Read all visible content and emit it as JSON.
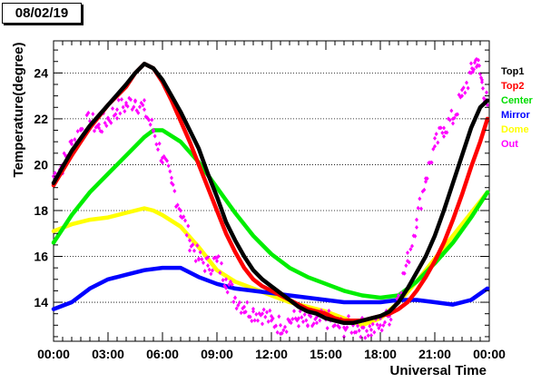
{
  "title": "08/02/19",
  "chart_data": {
    "type": "line",
    "title": "08/02/19",
    "xlabel": "Universal Time",
    "ylabel": "Temperature(degree)",
    "xlim": [
      0,
      24
    ],
    "ylim": [
      12.3,
      25.4
    ],
    "x_ticks": [
      "00:00",
      "03:00",
      "06:00",
      "09:00",
      "12:00",
      "15:00",
      "18:00",
      "21:00",
      "00:00"
    ],
    "y_ticks": [
      "14",
      "16",
      "18",
      "20",
      "22",
      "24"
    ],
    "grid": "horizontal dotted",
    "legend": "right",
    "series": [
      {
        "name": "Top1",
        "color": "#000000",
        "style": "line",
        "x": [
          0,
          1,
          2,
          3,
          4,
          4.5,
          5,
          5.5,
          6,
          6.5,
          7,
          7.5,
          8,
          8.5,
          9,
          9.5,
          10,
          10.5,
          11,
          11.5,
          12,
          12.5,
          13,
          13.5,
          14,
          14.5,
          15,
          15.5,
          16,
          16.5,
          17,
          17.5,
          18,
          18.5,
          19,
          19.5,
          20,
          20.5,
          21,
          21.5,
          22,
          22.5,
          23,
          23.5,
          23.9
        ],
        "y": [
          19.2,
          20.6,
          21.7,
          22.6,
          23.5,
          24.0,
          24.4,
          24.2,
          23.7,
          23.0,
          22.3,
          21.5,
          20.7,
          19.6,
          18.6,
          17.5,
          16.7,
          16.0,
          15.4,
          15.0,
          14.7,
          14.4,
          14.1,
          13.8,
          13.6,
          13.5,
          13.3,
          13.2,
          13.1,
          13.1,
          13.2,
          13.3,
          13.4,
          13.6,
          14.0,
          14.6,
          15.3,
          16.0,
          16.9,
          18.0,
          19.2,
          20.4,
          21.6,
          22.5,
          22.8
        ]
      },
      {
        "name": "Top2",
        "color": "#ff0000",
        "style": "line",
        "x": [
          0,
          1,
          2,
          3,
          4,
          4.5,
          5,
          5.5,
          6,
          6.5,
          7,
          7.5,
          8,
          8.5,
          9,
          9.5,
          10,
          10.5,
          11,
          11.5,
          12,
          12.5,
          13,
          13.5,
          14,
          14.5,
          15,
          15.5,
          16,
          16.5,
          17,
          17.5,
          18,
          18.5,
          19,
          19.5,
          20,
          20.5,
          21,
          21.5,
          22,
          22.5,
          23,
          23.5,
          23.9
        ],
        "y": [
          19.1,
          20.4,
          21.6,
          22.6,
          23.4,
          24.0,
          24.4,
          24.2,
          23.6,
          22.8,
          21.9,
          21.0,
          20.0,
          19.0,
          18.0,
          17.0,
          16.2,
          15.5,
          15.0,
          14.7,
          14.5,
          14.3,
          14.1,
          13.9,
          13.7,
          13.6,
          13.5,
          13.3,
          13.2,
          13.2,
          13.2,
          13.3,
          13.4,
          13.5,
          13.7,
          14.0,
          14.5,
          15.1,
          15.8,
          16.6,
          17.6,
          18.7,
          19.9,
          21.0,
          22.0
        ]
      },
      {
        "name": "Center",
        "color": "#00ee00",
        "style": "line",
        "x": [
          0,
          1,
          2,
          3,
          4,
          5,
          5.5,
          6,
          7,
          8,
          9,
          10,
          11,
          12,
          13,
          14,
          15,
          16,
          17,
          18,
          19,
          20,
          21,
          22,
          23,
          23.9
        ],
        "y": [
          16.6,
          17.8,
          18.8,
          19.6,
          20.4,
          21.2,
          21.5,
          21.5,
          21.0,
          20.1,
          19.0,
          17.9,
          16.9,
          16.1,
          15.5,
          15.1,
          14.8,
          14.5,
          14.3,
          14.2,
          14.3,
          14.9,
          15.7,
          16.6,
          17.7,
          18.8
        ]
      },
      {
        "name": "Mirror",
        "color": "#0000ff",
        "style": "line",
        "x": [
          0,
          1,
          2,
          3,
          4,
          5,
          6,
          7,
          8,
          9,
          10,
          11,
          12,
          13,
          14,
          15,
          16,
          17,
          18,
          19,
          20,
          21,
          22,
          23,
          23.9
        ],
        "y": [
          13.7,
          14.0,
          14.6,
          15.0,
          15.2,
          15.4,
          15.5,
          15.5,
          15.1,
          14.8,
          14.6,
          14.5,
          14.4,
          14.3,
          14.2,
          14.1,
          14.0,
          14.0,
          14.0,
          14.1,
          14.1,
          14.0,
          13.9,
          14.1,
          14.6
        ]
      },
      {
        "name": "Dome",
        "color": "#ffff00",
        "style": "line",
        "x": [
          0,
          1,
          2,
          3,
          4,
          5,
          5.5,
          6,
          7,
          8,
          9,
          10,
          11,
          12,
          13,
          14,
          15,
          16,
          17,
          18,
          19,
          20,
          21,
          22,
          23,
          23.9
        ],
        "y": [
          17.1,
          17.4,
          17.6,
          17.7,
          17.9,
          18.1,
          18.0,
          17.8,
          17.3,
          16.4,
          15.4,
          14.9,
          14.6,
          14.3,
          14.0,
          13.8,
          13.6,
          13.3,
          13.0,
          13.3,
          14.0,
          14.9,
          15.9,
          16.9,
          17.9,
          18.8
        ]
      },
      {
        "name": "Out",
        "color": "#ff00ff",
        "style": "scatter",
        "x": [
          0,
          0.5,
          1,
          1.5,
          2,
          2.5,
          3,
          3.5,
          4,
          4.5,
          5,
          5.5,
          6,
          6.5,
          7,
          7.5,
          8,
          8.5,
          9,
          9.5,
          10,
          10.5,
          11,
          11.5,
          12,
          12.5,
          13,
          13.5,
          14,
          14.5,
          15,
          15.5,
          16,
          16.5,
          17,
          17.5,
          18,
          18.5,
          19,
          19.5,
          20,
          20.5,
          21,
          21.5,
          22,
          22.5,
          23,
          23.3,
          23.6,
          23.9
        ],
        "y": [
          19.5,
          20.0,
          20.9,
          21.5,
          21.9,
          21.6,
          22.0,
          22.4,
          22.6,
          22.8,
          22.4,
          21.5,
          20.3,
          19.2,
          18.0,
          16.7,
          15.9,
          15.6,
          15.8,
          15.0,
          14.2,
          13.8,
          13.6,
          13.5,
          13.2,
          13.0,
          13.2,
          13.3,
          13.0,
          13.1,
          13.3,
          13.0,
          12.9,
          13.0,
          12.9,
          12.8,
          13.0,
          13.4,
          14.3,
          15.8,
          17.6,
          19.4,
          20.8,
          21.6,
          22.0,
          23.0,
          24.0,
          24.6,
          23.6,
          22.6
        ]
      }
    ]
  }
}
